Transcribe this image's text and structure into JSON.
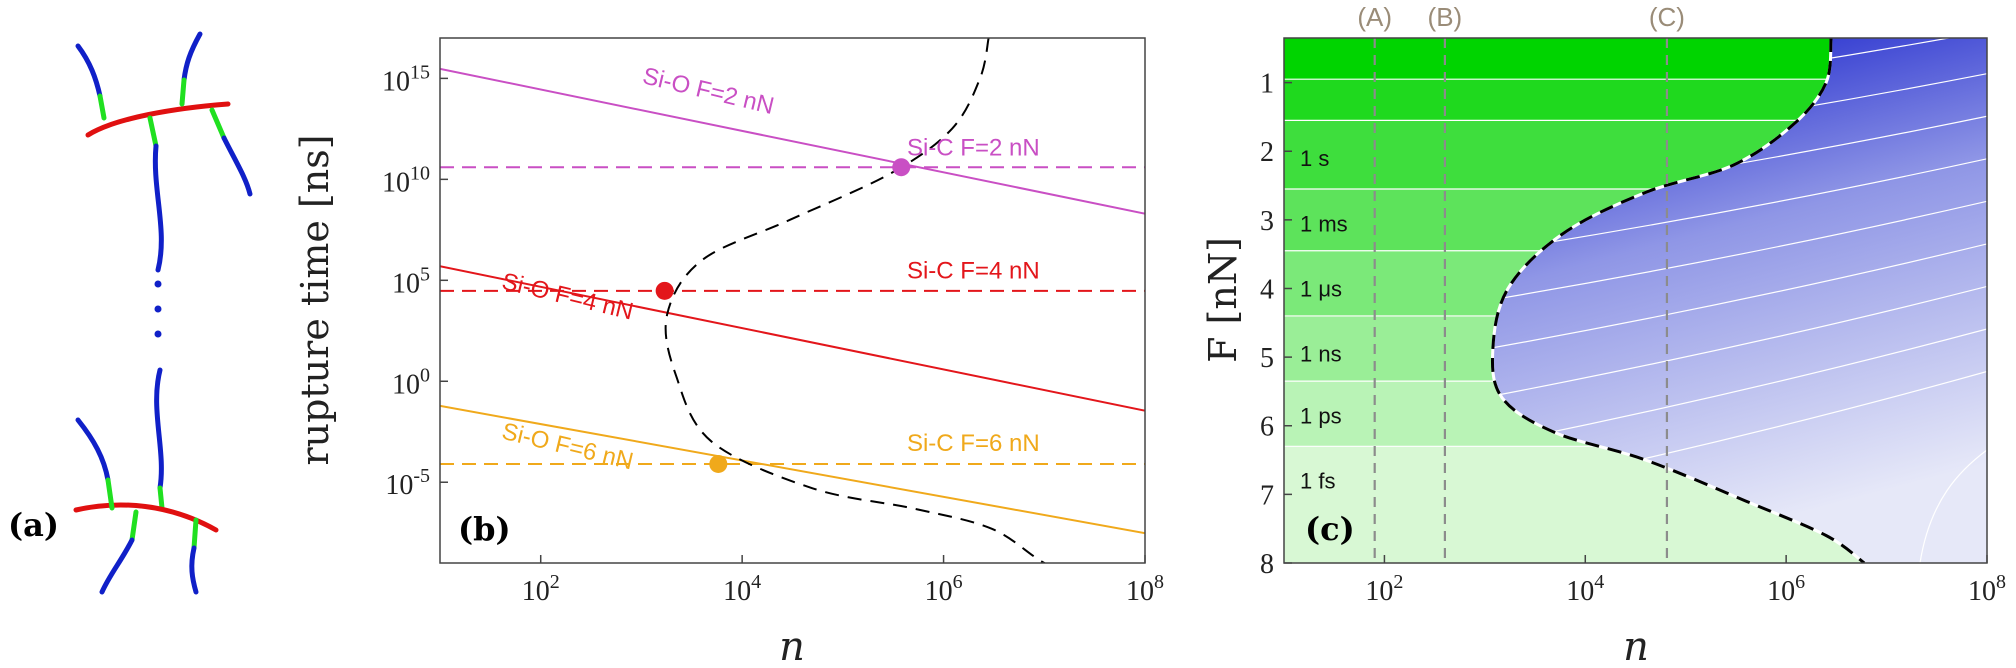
{
  "panels": {
    "a": {
      "label": "(a)"
    },
    "b": {
      "label": "(b)"
    },
    "c": {
      "label": "(c)"
    }
  },
  "colors": {
    "sio_2": "#c94fc4",
    "sio_4": "#e3161b",
    "sio_6": "#f0a91b",
    "boundary": "#000000",
    "green_light": "#d8f8d4",
    "green_dark": "#00d400",
    "blue_light": "#e6e8f8",
    "blue_dark": "#0a14c8",
    "dashed_gray": "#8c8c8c",
    "chain_red": "#e01010",
    "chain_blue": "#1020c8",
    "chain_green": "#20e020"
  },
  "chart_data": [
    {
      "type": "line",
      "panel": "b",
      "xlabel": "n",
      "ylabel": "rupture time [ns]",
      "xscale": "log",
      "yscale": "log",
      "xlim": [
        10,
        100000000
      ],
      "ylim": [
        1e-09,
        1e+17
      ],
      "xticks": [
        100,
        10000,
        1000000,
        100000000
      ],
      "xtick_labels": [
        {
          "base": "10",
          "exp": "2"
        },
        {
          "base": "10",
          "exp": "4"
        },
        {
          "base": "10",
          "exp": "6"
        },
        {
          "base": "10",
          "exp": "8"
        }
      ],
      "yticks": [
        1e-05,
        1,
        100000.0,
        10000000000.0,
        1000000000000000.0
      ],
      "ytick_labels": [
        {
          "base": "10",
          "exp": "-5"
        },
        {
          "base": "10",
          "exp": "0"
        },
        {
          "base": "10",
          "exp": "5"
        },
        {
          "base": "10",
          "exp": "10"
        },
        {
          "base": "10",
          "exp": "15"
        }
      ],
      "series": [
        {
          "name": "Si-O F=2 nN",
          "style": "solid",
          "color_key": "sio_2",
          "x": [
            10,
            100000000
          ],
          "y": [
            3000000000000000.0,
            200000000.0
          ]
        },
        {
          "name": "Si-O F=4 nN",
          "style": "solid",
          "color_key": "sio_4",
          "x": [
            10,
            100000000
          ],
          "y": [
            500000.0,
            0.035
          ]
        },
        {
          "name": "Si-O F=6 nN",
          "style": "solid",
          "color_key": "sio_6",
          "x": [
            10,
            100000000
          ],
          "y": [
            0.06,
            3e-08
          ]
        },
        {
          "name": "Si-C F=2 nN",
          "style": "dashed",
          "color_key": "sio_2",
          "x": [
            10,
            100000000
          ],
          "y": [
            40000000000.0,
            40000000000.0
          ]
        },
        {
          "name": "Si-C F=4 nN",
          "style": "dashed",
          "color_key": "sio_4",
          "x": [
            10,
            100000000
          ],
          "y": [
            30000.0,
            30000.0
          ]
        },
        {
          "name": "Si-C F=6 nN",
          "style": "dashed",
          "color_key": "sio_6",
          "x": [
            10,
            100000000
          ],
          "y": [
            8e-05,
            8e-05
          ]
        }
      ],
      "boundary": {
        "style": "dashed",
        "x": [
          2800000,
          2300000,
          1200000,
          300000,
          30000,
          4000,
          1800,
          2200,
          5000,
          50000,
          500000,
          3000000,
          10000000,
          30000000
        ],
        "y": [
          1e+17,
          1000000000000000.0,
          3000000000000.0,
          20000000000.0,
          100000000.0,
          1000000.0,
          2000.0,
          2,
          0.001,
          5e-06,
          5e-07,
          5e-08,
          1e-09,
          1e-10
        ]
      },
      "intersections": [
        {
          "x": 380000,
          "y": 40000000000.0,
          "color_key": "sio_2"
        },
        {
          "x": 1700,
          "y": 30000.0,
          "color_key": "sio_4"
        },
        {
          "x": 5800,
          "y": 8e-05,
          "color_key": "sio_6"
        }
      ],
      "series_labels": [
        {
          "text": "Si-O F=2 nN",
          "x": 1000,
          "y": 600000000000000.0,
          "angle": 13.5,
          "color_key": "sio_2"
        },
        {
          "text": "Si-C F=2 nN",
          "x": 9000000,
          "y": 150000000000.0,
          "angle": 0,
          "color_key": "sio_2",
          "anchor": "end"
        },
        {
          "text": "Si-O F=4 nN",
          "x": 40,
          "y": 40000.0,
          "angle": 13.5,
          "color_key": "sio_4"
        },
        {
          "text": "Si-C F=4 nN",
          "x": 9000000,
          "y": 120000.0,
          "angle": 0,
          "color_key": "sio_4",
          "anchor": "end"
        },
        {
          "text": "Si-O F=6 nN",
          "x": 40,
          "y": 0.0015,
          "angle": 13.5,
          "color_key": "sio_6"
        },
        {
          "text": "Si-C F=6 nN",
          "x": 9000000,
          "y": 0.00035,
          "angle": 0,
          "color_key": "sio_6",
          "anchor": "end"
        }
      ]
    },
    {
      "type": "heatmap",
      "panel": "c",
      "xlabel": "n",
      "ylabel": "F [nN]",
      "xscale": "log",
      "xlim": [
        10,
        100000000
      ],
      "ylim": [
        0.35,
        8
      ],
      "y_inverted": true,
      "xticks": [
        100,
        10000,
        1000000,
        100000000
      ],
      "xtick_labels": [
        {
          "base": "10",
          "exp": "2"
        },
        {
          "base": "10",
          "exp": "4"
        },
        {
          "base": "10",
          "exp": "6"
        },
        {
          "base": "10",
          "exp": "8"
        }
      ],
      "yticks": [
        1,
        2,
        3,
        4,
        5,
        6,
        7,
        8
      ],
      "vertical_markers": [
        {
          "label": "(A)",
          "x": 80
        },
        {
          "label": "(B)",
          "x": 400
        },
        {
          "label": "(C)",
          "x": 65000
        }
      ],
      "contour_levels": [
        {
          "label": "1 s",
          "F": 2.1
        },
        {
          "label": "1 ms",
          "F": 3.05
        },
        {
          "label": "1 μs",
          "F": 4.0
        },
        {
          "label": "1 ns",
          "F": 4.95
        },
        {
          "label": "1 ps",
          "F": 5.85
        },
        {
          "label": "1 fs",
          "F": 6.8
        }
      ],
      "band_edges_F": [
        0.35,
        0.95,
        1.55,
        2.55,
        3.45,
        4.4,
        5.35,
        6.3,
        8
      ],
      "boundary": {
        "style": "dashed",
        "x": [
          2800000,
          2500000,
          1200000,
          300000,
          40000,
          6000,
          1700,
          1200,
          1500,
          5000,
          40000,
          400000,
          2500000,
          6000000
        ],
        "F": [
          0.35,
          1.0,
          1.6,
          2.2,
          2.6,
          3.2,
          4.0,
          4.9,
          5.6,
          6.1,
          6.5,
          7.1,
          7.6,
          8.0
        ]
      }
    }
  ]
}
